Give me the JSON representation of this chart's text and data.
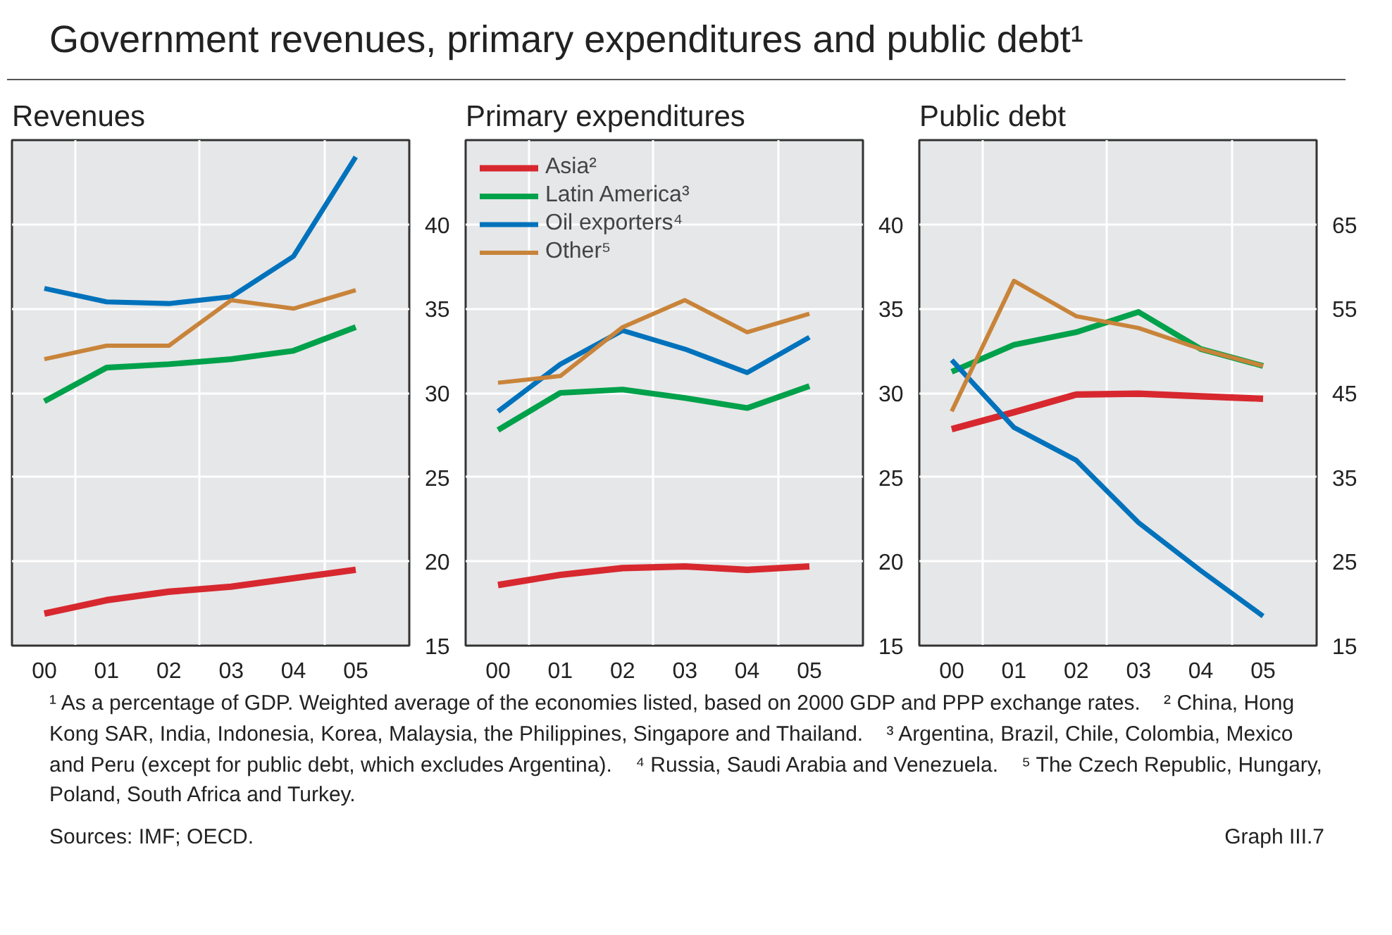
{
  "chart_data": [
    {
      "type": "line",
      "title": "Government revenues, primary expenditures and public debt¹",
      "subtitle": "Revenues",
      "categories": [
        "00",
        "01",
        "02",
        "03",
        "04",
        "05"
      ],
      "ylim": [
        15,
        45
      ],
      "yticks": [
        15,
        20,
        25,
        30,
        35,
        40
      ],
      "grid": true,
      "legend": false,
      "series": [
        {
          "color": "#d7282f",
          "values": [
            16.9,
            17.7,
            18.2,
            18.5,
            19.0,
            19.5
          ]
        },
        {
          "color": "#00a14b",
          "values": [
            29.5,
            31.5,
            31.7,
            32.0,
            32.5,
            33.9
          ]
        },
        {
          "color": "#0072bc",
          "values": [
            36.2,
            35.4,
            35.3,
            35.7,
            38.1,
            44.0
          ]
        },
        {
          "color": "#c8843a",
          "values": [
            32.0,
            32.8,
            32.8,
            35.5,
            35.0,
            36.1
          ]
        }
      ]
    },
    {
      "type": "line",
      "title": "Primary expenditures",
      "categories": [
        "00",
        "01",
        "02",
        "03",
        "04",
        "05"
      ],
      "ylim": [
        15,
        45
      ],
      "yticks": [
        15,
        20,
        25,
        30,
        35,
        40
      ],
      "grid": true,
      "legend": "top left",
      "series": [
        {
          "name": "Asia²",
          "color": "#d7282f",
          "values": [
            18.6,
            19.2,
            19.6,
            19.7,
            19.5,
            19.7
          ]
        },
        {
          "name": "Latin America³",
          "color": "#00a14b",
          "values": [
            27.8,
            30.0,
            30.2,
            29.7,
            29.1,
            30.4
          ]
        },
        {
          "name": "Oil exporters⁴",
          "color": "#0072bc",
          "values": [
            28.9,
            31.7,
            33.7,
            32.6,
            31.2,
            33.3
          ]
        },
        {
          "name": "Other⁵",
          "color": "#c8843a",
          "values": [
            30.6,
            31.0,
            33.9,
            35.5,
            33.6,
            34.7
          ]
        }
      ]
    },
    {
      "type": "line",
      "title": "Public debt",
      "categories": [
        "00",
        "01",
        "02",
        "03",
        "04",
        "05"
      ],
      "ylim": [
        15,
        75
      ],
      "yticks": [
        15,
        25,
        35,
        45,
        55,
        65
      ],
      "grid": true,
      "legend": false,
      "series": [
        {
          "color": "#d7282f",
          "values": [
            40.7,
            42.7,
            44.8,
            44.9,
            44.6,
            44.3
          ]
        },
        {
          "color": "#00a14b",
          "values": [
            47.5,
            50.7,
            52.2,
            54.6,
            50.2,
            48.2
          ]
        },
        {
          "color": "#0072bc",
          "values": [
            48.9,
            40.9,
            37.0,
            29.6,
            23.9,
            18.5
          ]
        },
        {
          "color": "#c8843a",
          "values": [
            42.8,
            58.3,
            54.1,
            52.7,
            50.2,
            48.2
          ]
        }
      ],
      "annotations": [
        "¹ As a percentage of GDP. Weighted average of the economies listed, based on 2000 GDP and PPP exchange rates.",
        "² China, Hong Kong SAR, India, Indonesia, Korea, Malaysia, the Philippines, Singapore and Thailand.",
        "³ Argentina, Brazil, Chile, Colombia, Mexico and Peru (except for public debt, which excludes Argentina).",
        "⁴ Russia, Saudi Arabia and Venezuela.",
        "⁵ The Czech Republic, Hungary, Poland, South Africa and Turkey.",
        "Sources: IMF; OECD.",
        "Graph III.7"
      ]
    }
  ]
}
